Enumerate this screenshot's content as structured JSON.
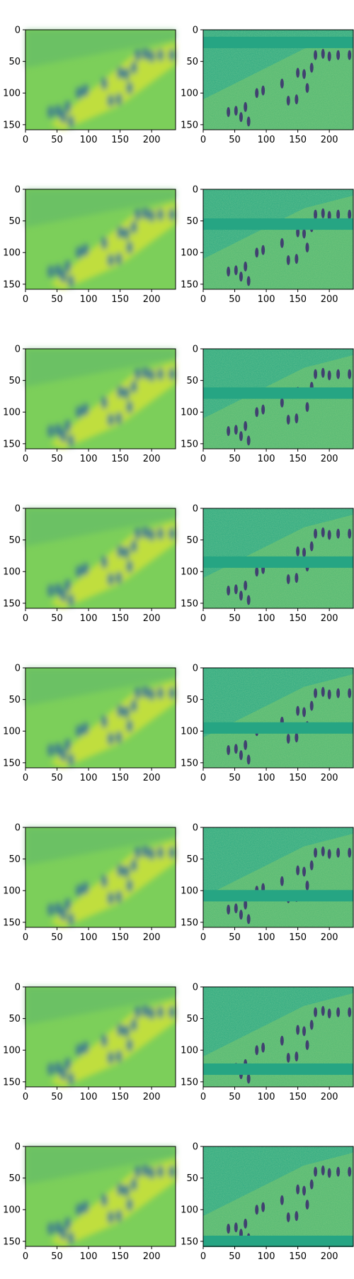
{
  "figure": {
    "rows": 8,
    "cols": 2,
    "x_axis": {
      "lim": [
        0,
        238
      ],
      "ticks": [
        0,
        50,
        100,
        150,
        200
      ]
    },
    "y_axis": {
      "lim": [
        0,
        158
      ],
      "ticks": [
        0,
        50,
        100,
        150
      ]
    },
    "colormap": "viridis",
    "panels_left": [
      "blurred-reconstruction",
      "blurred-reconstruction",
      "blurred-reconstruction",
      "blurred-reconstruction",
      "blurred-reconstruction",
      "blurred-reconstruction",
      "blurred-reconstruction",
      "blurred-reconstruction"
    ],
    "panels_right": [
      "residual-high-frequency",
      "residual-high-frequency",
      "residual-high-frequency",
      "residual-high-frequency",
      "residual-high-frequency",
      "residual-high-frequency",
      "residual-high-frequency",
      "residual-high-frequency"
    ],
    "right_band_y": [
      20,
      55,
      70,
      85,
      95,
      108,
      130,
      150
    ],
    "colors": {
      "left_bg": "#7ccf5a",
      "left_bright": "#c8e03a",
      "left_dark": "#3f7f8f",
      "right_bg": "#2aa87f",
      "right_band": "#26a583",
      "right_light": "#9bd45c",
      "figures_dark": "#3b2a6f"
    }
  }
}
